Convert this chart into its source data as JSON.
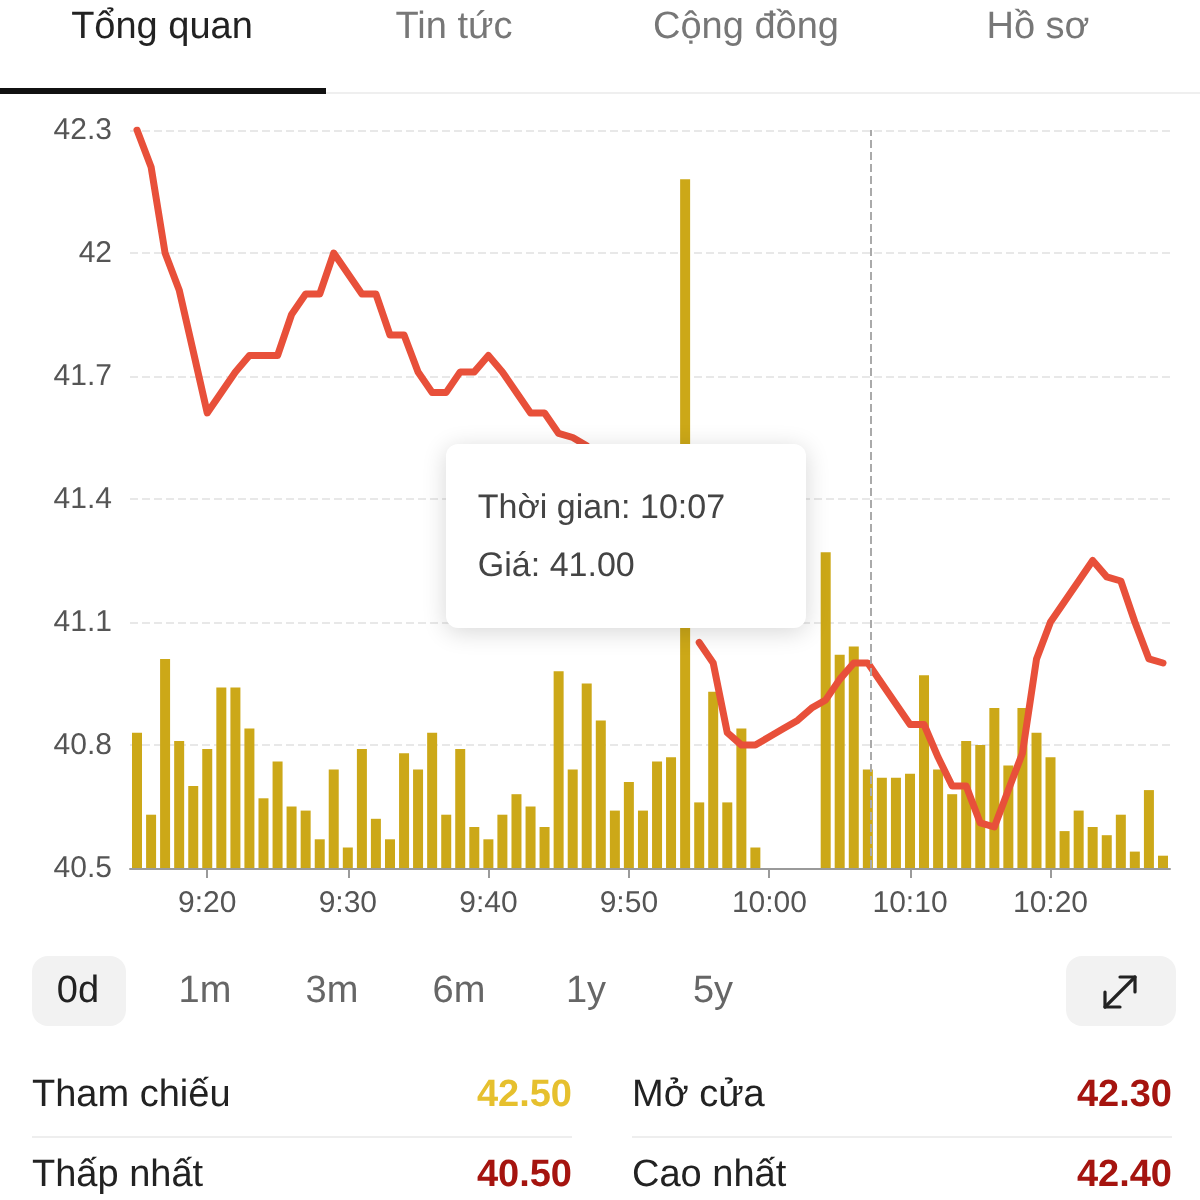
{
  "chart_data": [
    {
      "type": "other",
      "annotations": [
        "Tổng quan",
        "Tin tức",
        "Cộng đồng",
        "Hồ sơ"
      ]
    },
    {
      "type": "line",
      "x": [
        9.25,
        9.2667,
        9.2833,
        9.3,
        9.3167,
        9.3333,
        9.35,
        9.3667,
        9.3833,
        9.4,
        9.4167,
        9.4333,
        9.45,
        9.4667,
        9.4833,
        9.5,
        9.5167,
        9.5333,
        9.55,
        9.5667,
        9.5833,
        9.6,
        9.6167,
        9.6333,
        9.65,
        9.6667,
        9.6833,
        9.7,
        9.7167,
        9.7333,
        9.75,
        9.7667,
        9.7833,
        9.8,
        9.8167,
        9.8333,
        9.85,
        9.8667,
        9.8833,
        9.9,
        9.9167,
        9.9333,
        9.95,
        9.9667,
        9.9833,
        10,
        10.0167,
        10.0333,
        10.05,
        10.0667,
        10.0833,
        10.1,
        10.1167,
        10.1333,
        10.15,
        10.1667,
        10.1833,
        10.2,
        10.2167,
        10.2333,
        10.25,
        10.2667,
        10.2833,
        10.3,
        10.3167,
        10.3333,
        10.35,
        10.3667,
        10.3833,
        10.4,
        10.4167,
        10.4333,
        10.45,
        10.4667
      ],
      "series": [
        {
          "type": "line",
          "color": "#e8503a",
          "values": [
            42.3,
            42.21,
            42.0,
            41.91,
            41.76,
            41.61,
            41.66,
            41.71,
            41.75,
            41.75,
            41.75,
            41.85,
            41.9,
            41.9,
            42.0,
            41.95,
            41.9,
            41.9,
            41.8,
            41.8,
            41.71,
            41.66,
            41.66,
            41.71,
            41.71,
            41.75,
            41.71,
            41.66,
            41.61,
            41.61,
            41.56,
            41.55,
            41.53,
            null,
            null,
            null,
            null,
            null,
            null,
            null,
            41.05,
            41.0,
            40.83,
            40.8,
            40.8,
            40.82,
            40.84,
            40.86,
            40.89,
            40.91,
            40.96,
            41.0,
            41.0,
            40.95,
            40.9,
            40.85,
            40.85,
            40.77,
            40.7,
            40.7,
            40.61,
            40.6,
            40.69,
            40.78,
            41.01,
            41.1,
            41.15,
            41.2,
            41.25,
            41.21,
            41.2,
            41.1,
            41.01,
            41.0
          ]
        },
        {
          "type": "bar",
          "color": "#cca818",
          "values": [
            40.83,
            40.63,
            41.01,
            40.81,
            40.7,
            40.79,
            40.94,
            40.94,
            40.84,
            40.67,
            40.76,
            40.65,
            40.64,
            40.57,
            40.74,
            40.55,
            40.79,
            40.62,
            40.57,
            40.78,
            40.74,
            40.83,
            40.63,
            40.79,
            40.6,
            40.57,
            40.63,
            40.68,
            40.65,
            40.6,
            40.98,
            40.74,
            40.95,
            40.86,
            40.64,
            40.71,
            40.64,
            40.76,
            40.77,
            42.18,
            40.66,
            40.93,
            40.66,
            40.84,
            40.55,
            null,
            null,
            null,
            null,
            41.27,
            41.02,
            41.04,
            40.74,
            40.72,
            40.72,
            40.73,
            40.97,
            40.74,
            40.68,
            40.81,
            40.8,
            40.89,
            40.75,
            40.89,
            40.83,
            40.77,
            40.59,
            40.64,
            40.6,
            40.58,
            40.63,
            40.54,
            40.69,
            40.53
          ]
        }
      ],
      "xlim": [
        9.2417,
        10.475
      ],
      "xticks": [
        {
          "value": 9.3333,
          "label": "9:20"
        },
        {
          "value": 9.5,
          "label": "9:30"
        },
        {
          "value": 9.6667,
          "label": "9:40"
        },
        {
          "value": 9.8333,
          "label": "9:50"
        },
        {
          "value": 10,
          "label": "10:00"
        },
        {
          "value": 10.1667,
          "label": "10:10"
        },
        {
          "value": 10.3333,
          "label": "10:20"
        }
      ],
      "ylim": [
        40.5,
        42.3
      ],
      "yticks": [
        40.5,
        40.8,
        41.1,
        41.4,
        41.7,
        42,
        42.3
      ],
      "grid": "y",
      "ref_lines": [
        {
          "axis": "x",
          "value": 10.1167,
          "line_style": "dashed",
          "color": "#aaaaaa"
        }
      ],
      "annotations": [
        "Thời gian: 10:07",
        "Giá: 41.00"
      ]
    },
    {
      "type": "other",
      "annotations": [
        "0d",
        "1m",
        "3m",
        "6m",
        "1y",
        "5y"
      ]
    },
    {
      "type": "other",
      "annotations": [
        "Tham chiếu",
        "42.50",
        "Mở cửa",
        "42.30",
        "Thấp nhất",
        "40.50",
        "Cao nhất",
        "42.40"
      ],
      "colors": [
        "#222222",
        "#e6c02e",
        "#222222",
        "#a5140f",
        "#222222",
        "#a5140f",
        "#222222",
        "#a5140f"
      ]
    }
  ]
}
